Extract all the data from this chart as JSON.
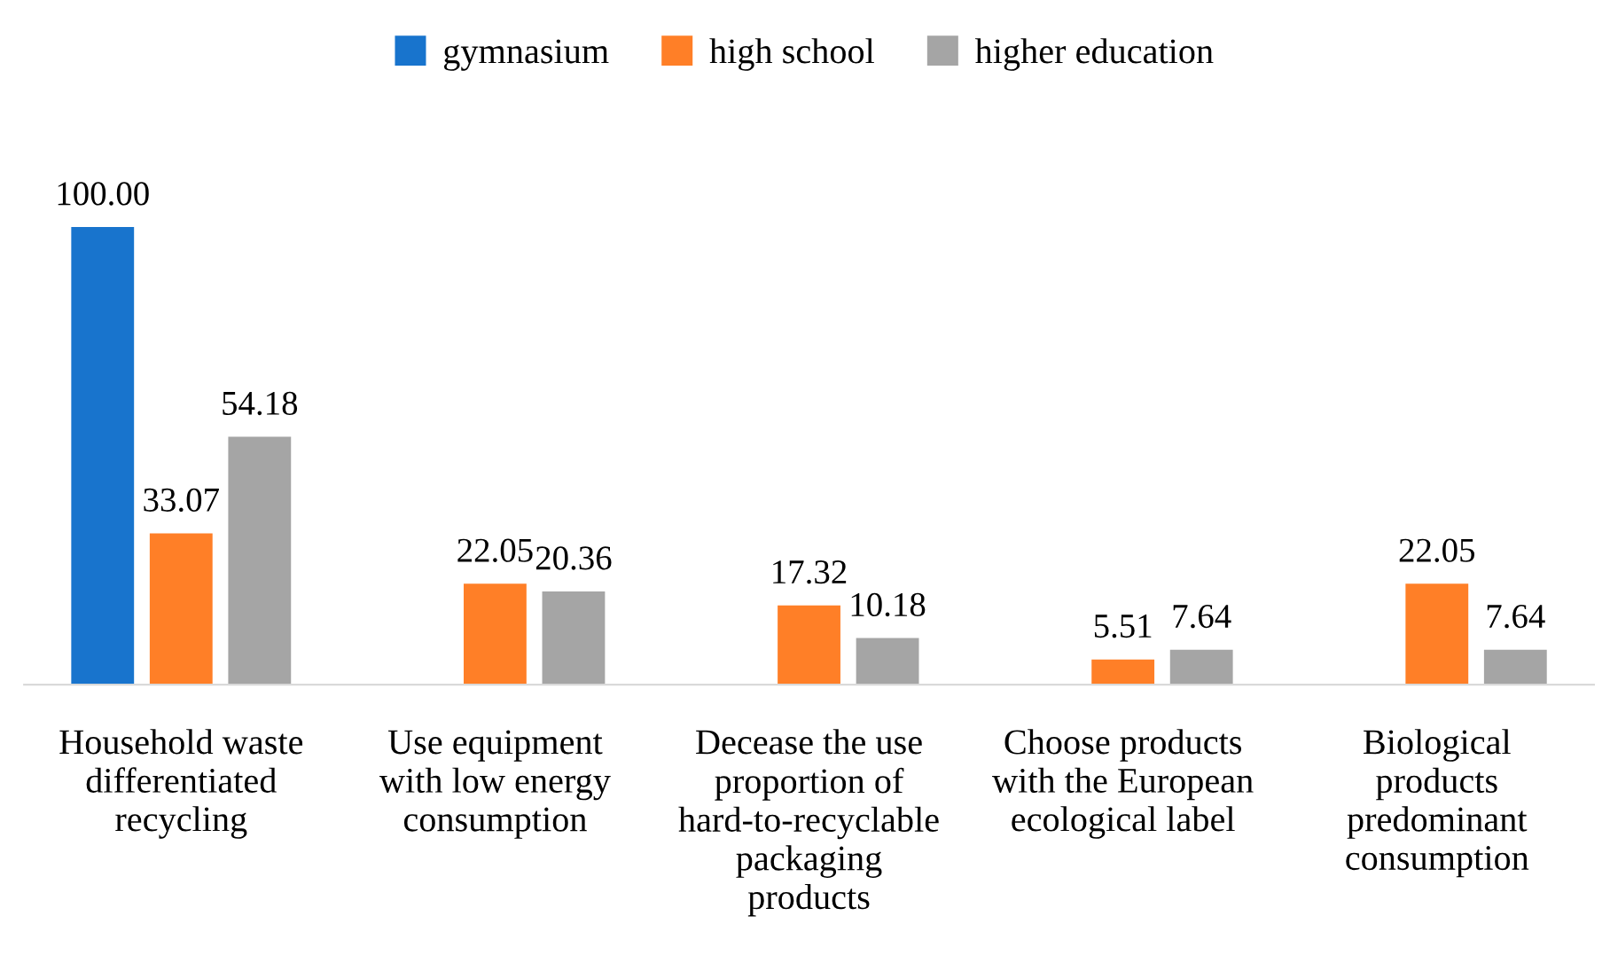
{
  "chart_data": {
    "type": "bar",
    "categories": [
      "Household waste differentiated recycling",
      "Use equipment with low energy consumption",
      "Decease the use proportion of hard-to-recyclable packaging products",
      "Choose products with the European ecological label",
      "Biological products predominant consumption"
    ],
    "series": [
      {
        "name": "gymnasium",
        "color": "#1874cd",
        "values": [
          100.0,
          null,
          null,
          null,
          null
        ],
        "value_labels": [
          "100.00",
          null,
          null,
          null,
          null
        ]
      },
      {
        "name": "high school",
        "color": "#ff7f27",
        "values": [
          33.07,
          22.05,
          17.32,
          5.51,
          22.05
        ],
        "value_labels": [
          "33.07",
          "22.05",
          "17.32",
          "5.51",
          "22.05"
        ]
      },
      {
        "name": "higher education",
        "color": "#a5a5a5",
        "values": [
          54.18,
          20.36,
          10.18,
          7.64,
          7.64
        ],
        "value_labels": [
          "54.18",
          "20.36",
          "10.18",
          "7.64",
          "7.64"
        ]
      }
    ],
    "legend": "top",
    "grid": false
  }
}
